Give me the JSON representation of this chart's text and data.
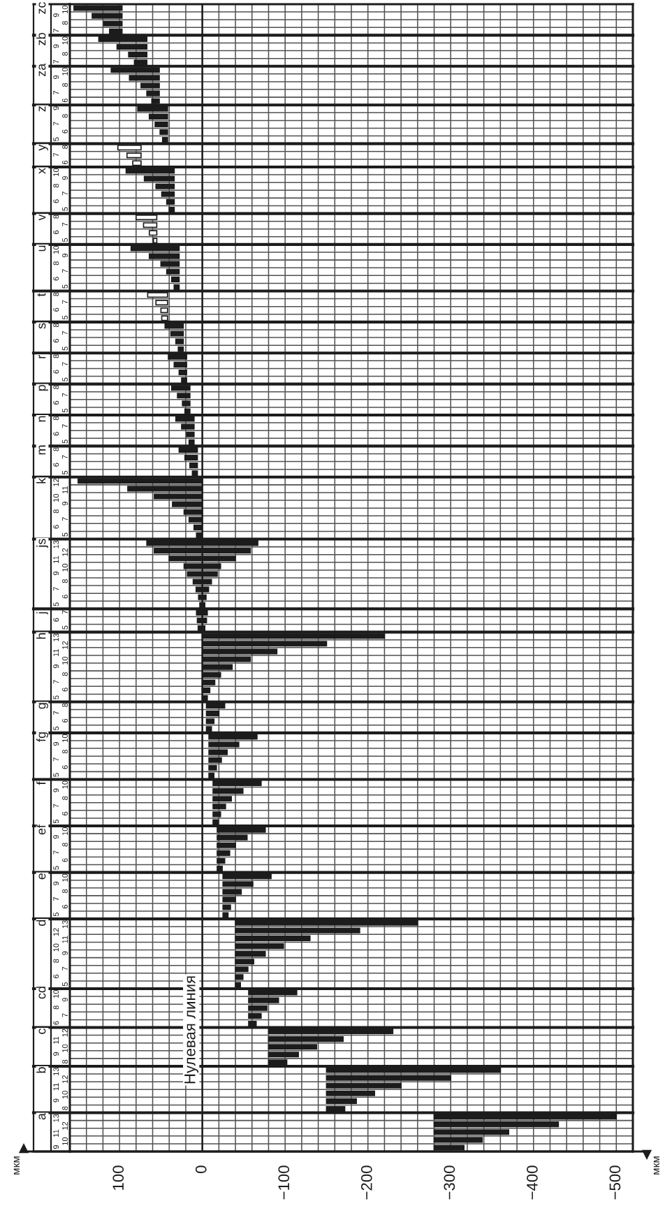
{
  "chart_data": {
    "type": "bar",
    "orientation": "horizontal",
    "categories": [
      "10",
      "9",
      "8",
      "7",
      "10",
      "9",
      "8",
      "7",
      "10",
      "9",
      "8",
      "7",
      "6",
      "9",
      "8",
      "7",
      "6",
      "5",
      "8",
      "7",
      "6",
      "10",
      "9",
      "8",
      "7",
      "6",
      "5",
      "8",
      "7",
      "6",
      "5",
      "10",
      "9",
      "8",
      "7",
      "6",
      "5",
      "8",
      "7",
      "6",
      "5",
      "8",
      "7",
      "6",
      "5",
      "8",
      "7",
      "6",
      "5",
      "8",
      "7",
      "6",
      "5",
      "8",
      "7",
      "6",
      "5",
      "8",
      "7",
      "6",
      "5",
      "12",
      "11",
      "10",
      "9",
      "8",
      "7",
      "6",
      "5",
      "13",
      "12",
      "11",
      "10",
      "9",
      "8",
      "7",
      "6",
      "5",
      "7",
      "6",
      "5",
      "13",
      "12",
      "11",
      "10",
      "9",
      "8",
      "7",
      "6",
      "5",
      "8",
      "7",
      "6",
      "5",
      "10",
      "9",
      "8",
      "7",
      "6",
      "5",
      "10",
      "9",
      "8",
      "7",
      "6",
      "5",
      "10",
      "9",
      "8",
      "7",
      "6",
      "5",
      "10",
      "9",
      "8",
      "7",
      "6",
      "5",
      "13",
      "12",
      "11",
      "10",
      "9",
      "8",
      "7",
      "6",
      "5",
      "10",
      "9",
      "8",
      "7",
      "6",
      "12",
      "11",
      "10",
      "9",
      "8",
      "13",
      "12",
      "11",
      "10",
      "9",
      "8",
      "13",
      "12",
      "11",
      "10",
      "9"
    ],
    "y2_categories": [
      "zc",
      null,
      null,
      null,
      "zb",
      null,
      null,
      null,
      "za",
      null,
      null,
      null,
      null,
      "z",
      null,
      null,
      null,
      null,
      "y",
      null,
      null,
      "x",
      null,
      null,
      null,
      null,
      null,
      "v",
      null,
      null,
      null,
      "u",
      null,
      null,
      null,
      null,
      null,
      "t",
      null,
      null,
      null,
      "s",
      null,
      null,
      null,
      "r",
      null,
      null,
      null,
      "p",
      null,
      null,
      null,
      "n",
      null,
      null,
      null,
      "m",
      null,
      null,
      null,
      "k",
      null,
      null,
      null,
      null,
      null,
      null,
      null,
      "js",
      null,
      null,
      null,
      null,
      null,
      null,
      null,
      null,
      "j",
      null,
      null,
      "h",
      null,
      null,
      null,
      null,
      null,
      null,
      null,
      null,
      "g",
      null,
      null,
      null,
      "fg",
      null,
      null,
      null,
      null,
      null,
      "f",
      null,
      null,
      null,
      null,
      null,
      "ef",
      null,
      null,
      null,
      null,
      null,
      "e",
      null,
      null,
      null,
      null,
      null,
      "d",
      null,
      null,
      null,
      null,
      null,
      null,
      null,
      null,
      "cd",
      null,
      null,
      null,
      null,
      "c",
      null,
      null,
      null,
      null,
      "b",
      null,
      null,
      null,
      null,
      null,
      "a",
      null,
      null,
      null,
      null
    ],
    "base": [
      97,
      97,
      97,
      97,
      67,
      67,
      67,
      67,
      52,
      52,
      52,
      52,
      52,
      42,
      42,
      42,
      42,
      42,
      74,
      74,
      74,
      34,
      34,
      34,
      34,
      34,
      34,
      55,
      55,
      55,
      55,
      28,
      28,
      28,
      28,
      28,
      28,
      42,
      42,
      42,
      42,
      23,
      23,
      23,
      23,
      19,
      19,
      19,
      19,
      15,
      15,
      15,
      15,
      10,
      10,
      10,
      10,
      6,
      6,
      6,
      6,
      0,
      0,
      0,
      0,
      0,
      1,
      1,
      1,
      -67,
      -58,
      -40,
      -22,
      -18,
      -11,
      -7.5,
      -4.5,
      -3,
      -6,
      -5,
      -3,
      -220,
      -150,
      -90,
      -58,
      -36,
      -22,
      -15,
      -9,
      -6,
      -27,
      -20,
      -14,
      -11,
      -66,
      -44,
      -30,
      -23,
      -17,
      -14,
      -71,
      -49,
      -35,
      -28,
      -22,
      -19,
      -76,
      -54,
      -40,
      -33,
      -27,
      -24,
      -83,
      -61,
      -47,
      -40,
      -34,
      -31,
      -260,
      -190,
      -130,
      -98,
      -76,
      -62,
      -55,
      -49,
      -46,
      -114,
      -92,
      -78,
      -71,
      -65,
      -230,
      -170,
      -138,
      -116,
      -102,
      -360,
      -300,
      -240,
      -208,
      -186,
      -172,
      -500,
      -430,
      -370,
      -338,
      -316
    ],
    "values": [
      58,
      36,
      22,
      15,
      58,
      36,
      22,
      15,
      58,
      36,
      22,
      15,
      9,
      36,
      22,
      15,
      9,
      6,
      28,
      17,
      10,
      58,
      36,
      22,
      15,
      9,
      6,
      25,
      16,
      9,
      4,
      58,
      36,
      22,
      15,
      9,
      6,
      24,
      14,
      8,
      7,
      22,
      15,
      9,
      6,
      22,
      15,
      9,
      6,
      22,
      15,
      9,
      6,
      22,
      15,
      9,
      6,
      22,
      15,
      9,
      6,
      150,
      90,
      58,
      36,
      22,
      15,
      9,
      6,
      134,
      116,
      80,
      44,
      36,
      22,
      15,
      9,
      6,
      13,
      11,
      8,
      220,
      150,
      90,
      58,
      36,
      22,
      15,
      9,
      6,
      22,
      15,
      9,
      6,
      58,
      36,
      22,
      15,
      9,
      6,
      58,
      36,
      22,
      15,
      9,
      6,
      58,
      36,
      22,
      15,
      9,
      6,
      58,
      36,
      22,
      15,
      9,
      6,
      220,
      150,
      90,
      58,
      36,
      22,
      15,
      9,
      6,
      58,
      36,
      22,
      15,
      9,
      150,
      90,
      58,
      36,
      22,
      210,
      150,
      90,
      58,
      36,
      22,
      220,
      150,
      90,
      58,
      36
    ],
    "colors": [
      "#1c1c1c",
      "#1c1c1c",
      "#1c1c1c",
      "#1c1c1c",
      "#1c1c1c",
      "#1c1c1c",
      "#1c1c1c",
      "#1c1c1c",
      "#1c1c1c",
      "#1c1c1c",
      "#1c1c1c",
      "#1c1c1c",
      "#1c1c1c",
      "#1c1c1c",
      "#1c1c1c",
      "#1c1c1c",
      "#1c1c1c",
      "#1c1c1c",
      "#ffffff",
      "#ffffff",
      "#ffffff",
      "#1c1c1c",
      "#1c1c1c",
      "#1c1c1c",
      "#1c1c1c",
      "#1c1c1c",
      "#1c1c1c",
      "#ffffff",
      "#ffffff",
      "#ffffff",
      "#ffffff",
      "#1c1c1c",
      "#1c1c1c",
      "#1c1c1c",
      "#1c1c1c",
      "#1c1c1c",
      "#1c1c1c",
      "#ffffff",
      "#ffffff",
      "#ffffff",
      "#ffffff",
      "#1c1c1c",
      "#1c1c1c",
      "#1c1c1c",
      "#1c1c1c",
      "#1c1c1c",
      "#1c1c1c",
      "#1c1c1c",
      "#1c1c1c",
      "#1c1c1c",
      "#1c1c1c",
      "#1c1c1c",
      "#1c1c1c",
      "#1c1c1c",
      "#1c1c1c",
      "#1c1c1c",
      "#1c1c1c",
      "#1c1c1c",
      "#1c1c1c",
      "#1c1c1c",
      "#1c1c1c",
      "#1c1c1c",
      "#1c1c1c",
      "#1c1c1c",
      "#1c1c1c",
      "#1c1c1c",
      "#1c1c1c",
      "#1c1c1c",
      "#1c1c1c",
      "#1c1c1c",
      "#1c1c1c",
      "#1c1c1c",
      "#1c1c1c",
      "#1c1c1c",
      "#1c1c1c",
      "#1c1c1c",
      "#1c1c1c",
      "#1c1c1c",
      "#1c1c1c",
      "#1c1c1c",
      "#1c1c1c",
      "#1c1c1c",
      "#1c1c1c",
      "#1c1c1c",
      "#1c1c1c",
      "#1c1c1c",
      "#1c1c1c",
      "#1c1c1c",
      "#1c1c1c",
      "#1c1c1c",
      "#1c1c1c",
      "#1c1c1c",
      "#1c1c1c",
      "#1c1c1c",
      "#1c1c1c",
      "#1c1c1c",
      "#1c1c1c",
      "#1c1c1c",
      "#1c1c1c",
      "#1c1c1c",
      "#1c1c1c",
      "#1c1c1c",
      "#1c1c1c",
      "#1c1c1c",
      "#1c1c1c",
      "#1c1c1c",
      "#1c1c1c",
      "#1c1c1c",
      "#1c1c1c",
      "#1c1c1c",
      "#1c1c1c",
      "#1c1c1c",
      "#1c1c1c",
      "#1c1c1c",
      "#1c1c1c",
      "#1c1c1c",
      "#1c1c1c",
      "#1c1c1c",
      "#1c1c1c",
      "#1c1c1c",
      "#1c1c1c",
      "#1c1c1c",
      "#1c1c1c",
      "#1c1c1c",
      "#1c1c1c",
      "#1c1c1c",
      "#1c1c1c",
      "#1c1c1c",
      "#1c1c1c",
      "#1c1c1c",
      "#1c1c1c",
      "#1c1c1c",
      "#1c1c1c",
      "#1c1c1c",
      "#1c1c1c",
      "#1c1c1c",
      "#1c1c1c",
      "#1c1c1c",
      "#1c1c1c",
      "#1c1c1c",
      "#1c1c1c",
      "#1c1c1c",
      "#1c1c1c",
      "#1c1c1c",
      "#1c1c1c",
      "#1c1c1c",
      "#1c1c1c",
      "#1c1c1c"
    ],
    "xlim": [
      160,
      -520
    ],
    "xticks": [
      {
        "value": 140,
        "label": null
      },
      {
        "value": 120,
        "label": null
      },
      100,
      {
        "value": 80,
        "label": null
      },
      {
        "value": 60,
        "label": null
      },
      {
        "value": 40,
        "label": null
      },
      {
        "value": 20,
        "label": null
      },
      0,
      {
        "value": -20,
        "label": null
      },
      {
        "value": -40,
        "label": null
      },
      {
        "value": -60,
        "label": null
      },
      {
        "value": -80,
        "label": null
      },
      {
        "value": -100,
        "label": "−100"
      },
      {
        "value": -120,
        "label": null
      },
      {
        "value": -140,
        "label": null
      },
      {
        "value": -160,
        "label": null
      },
      {
        "value": -180,
        "label": null
      },
      {
        "value": -200,
        "label": "−200"
      },
      {
        "value": -220,
        "label": null
      },
      {
        "value": -240,
        "label": null
      },
      {
        "value": -260,
        "label": null
      },
      {
        "value": -280,
        "label": null
      },
      {
        "value": -300,
        "label": "−300"
      },
      {
        "value": -320,
        "label": null
      },
      {
        "value": -340,
        "label": null
      },
      {
        "value": -360,
        "label": null
      },
      {
        "value": -380,
        "label": null
      },
      {
        "value": -400,
        "label": "−400"
      },
      {
        "value": -420,
        "label": null
      },
      {
        "value": -440,
        "label": null
      },
      {
        "value": -460,
        "label": null
      },
      {
        "value": -480,
        "label": null
      },
      {
        "value": -500,
        "label": "−500"
      }
    ],
    "grid": true,
    "ref_lines": [
      {
        "axis": "x",
        "value": 0,
        "label": "Нулевая линия"
      }
    ],
    "annotations": [
      "мкм",
      "мкм"
    ]
  }
}
